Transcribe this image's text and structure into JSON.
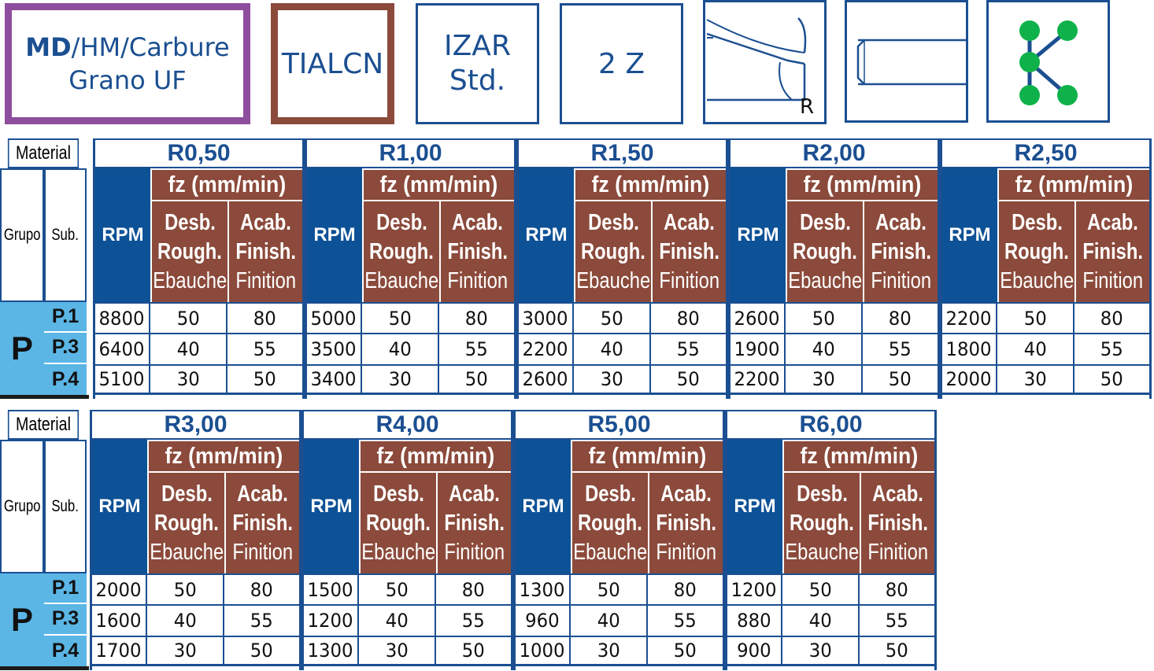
{
  "header": {
    "material": {
      "strong": "MD",
      "rest": "/HM/Carbure",
      "line2": "Grano UF",
      "color": "#8e4e9e"
    },
    "coating": {
      "label": "TIALCN",
      "color": "#8b4a3b"
    },
    "series": {
      "line1": "IZAR",
      "line2": "Std."
    },
    "teeth": {
      "label": "2 Z"
    },
    "shape": {
      "icon": "ball-nose-profile-icon",
      "label": "R"
    },
    "shank": {
      "icon": "cylindrical-shank-icon"
    },
    "iso": {
      "icon": "iso-k-group-icon",
      "color": "#0fb24a"
    }
  },
  "colors": {
    "blue": "#0d5196",
    "brown": "#8b4a3b",
    "light_blue": "#5bb6e6",
    "border": "#1b4f91"
  },
  "labels": {
    "material": "Material",
    "grupo": "Grupo",
    "sub": "Sub.",
    "rpm": "RPM",
    "fz": "fz (mm/min)",
    "desb": [
      "Desb.",
      "Rough.",
      "Ebauche"
    ],
    "acab": [
      "Acab.",
      "Finish.",
      "Finition"
    ]
  },
  "material_group": "P",
  "subgroups": [
    "P.1",
    "P.3",
    "P.4"
  ],
  "tables": [
    {
      "groups": [
        {
          "radius": "R0,50",
          "rows": [
            [
              "8800",
              "50",
              "80"
            ],
            [
              "6400",
              "40",
              "55"
            ],
            [
              "5100",
              "30",
              "50"
            ]
          ]
        },
        {
          "radius": "R1,00",
          "rows": [
            [
              "5000",
              "50",
              "80"
            ],
            [
              "3500",
              "40",
              "55"
            ],
            [
              "3400",
              "30",
              "50"
            ]
          ]
        },
        {
          "radius": "R1,50",
          "rows": [
            [
              "3000",
              "50",
              "80"
            ],
            [
              "2200",
              "40",
              "55"
            ],
            [
              "2600",
              "30",
              "50"
            ]
          ]
        },
        {
          "radius": "R2,00",
          "rows": [
            [
              "2600",
              "50",
              "80"
            ],
            [
              "1900",
              "40",
              "55"
            ],
            [
              "2200",
              "30",
              "50"
            ]
          ]
        },
        {
          "radius": "R2,50",
          "rows": [
            [
              "2200",
              "50",
              "80"
            ],
            [
              "1800",
              "40",
              "55"
            ],
            [
              "2000",
              "30",
              "50"
            ]
          ]
        }
      ]
    },
    {
      "groups": [
        {
          "radius": "R3,00",
          "rows": [
            [
              "2000",
              "50",
              "80"
            ],
            [
              "1600",
              "40",
              "55"
            ],
            [
              "1700",
              "30",
              "50"
            ]
          ]
        },
        {
          "radius": "R4,00",
          "rows": [
            [
              "1500",
              "50",
              "80"
            ],
            [
              "1200",
              "40",
              "55"
            ],
            [
              "1300",
              "30",
              "50"
            ]
          ]
        },
        {
          "radius": "R5,00",
          "rows": [
            [
              "1300",
              "50",
              "80"
            ],
            [
              "960",
              "40",
              "55"
            ],
            [
              "1000",
              "30",
              "50"
            ]
          ]
        },
        {
          "radius": "R6,00",
          "rows": [
            [
              "1200",
              "50",
              "80"
            ],
            [
              "880",
              "40",
              "55"
            ],
            [
              "900",
              "30",
              "50"
            ]
          ]
        }
      ]
    }
  ]
}
